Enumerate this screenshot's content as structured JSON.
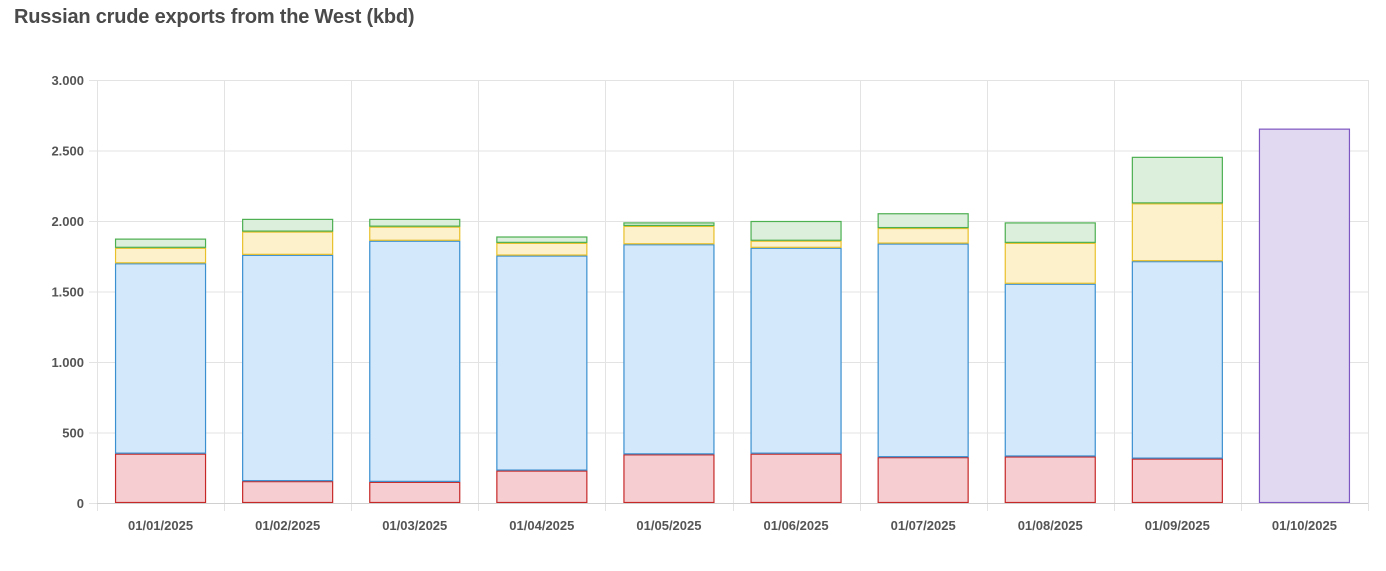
{
  "chart_data": {
    "type": "bar",
    "stacked": true,
    "title": "Russian crude exports from the West (kbd)",
    "xlabel": "",
    "ylabel": "",
    "ylim": [
      0,
      3000
    ],
    "yticks": [
      0,
      500,
      1000,
      1500,
      2000,
      2500,
      3000
    ],
    "ytick_labels": [
      "0",
      "500",
      "1.000",
      "1.500",
      "2.000",
      "2.500",
      "3.000"
    ],
    "categories": [
      "01/01/2025",
      "01/02/2025",
      "01/03/2025",
      "01/04/2025",
      "01/05/2025",
      "01/06/2025",
      "01/07/2025",
      "01/08/2025",
      "01/09/2025",
      "01/10/2025"
    ],
    "grid": true,
    "legend": "none",
    "series": [
      {
        "values": [
          350,
          155,
          150,
          230,
          345,
          350,
          325,
          330,
          315,
          0
        ],
        "fill": "#f6cdd0",
        "stroke": "#c62828"
      },
      {
        "values": [
          1350,
          1605,
          1710,
          1525,
          1490,
          1460,
          1515,
          1225,
          1400,
          0
        ],
        "fill": "#d3e8fa",
        "stroke": "#3a8fd0"
      },
      {
        "values": [
          110,
          165,
          100,
          90,
          130,
          50,
          110,
          290,
          410,
          0
        ],
        "fill": "#fdf1cc",
        "stroke": "#e8c02a"
      },
      {
        "values": [
          65,
          90,
          55,
          45,
          25,
          140,
          105,
          145,
          330,
          0
        ],
        "fill": "#dcefdc",
        "stroke": "#4caf50"
      },
      {
        "values": [
          0,
          0,
          0,
          0,
          0,
          0,
          0,
          0,
          0,
          2655
        ],
        "fill": "#e1d9f2",
        "stroke": "#7e57c2"
      }
    ]
  }
}
